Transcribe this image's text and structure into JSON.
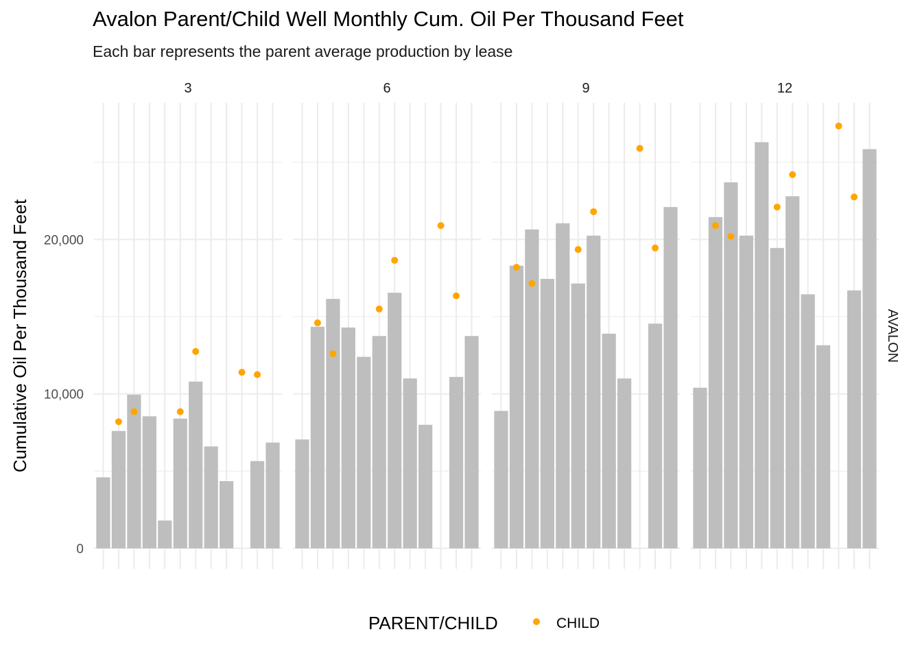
{
  "chart_data": {
    "type": "bar",
    "title": "Avalon Parent/Child Well Monthly Cum. Oil Per Thousand Feet",
    "subtitle": "Each bar represents the parent average production by lease",
    "ylabel": "Cumulative Oil Per Thousand Feet",
    "xlabel": "",
    "ylim": [
      0,
      28000
    ],
    "yticks": [
      0,
      10000,
      20000
    ],
    "ytick_labels": [
      "0",
      "10,000",
      "20,000"
    ],
    "grid": true,
    "row_strip": "AVALON",
    "legend": {
      "title": "PARENT/CHILD",
      "position": "bottom",
      "entries": [
        {
          "label": "CHILD",
          "color": "#FFA500"
        }
      ]
    },
    "colors": {
      "bar": "#BEBEBE",
      "point": "#FFA500",
      "grid": "#EBEBEB"
    },
    "num_leases": 12,
    "panels": [
      {
        "label": "3",
        "bars": [
          4600,
          7600,
          9950,
          8550,
          1800,
          8400,
          10800,
          6600,
          4350,
          null,
          5650,
          6850
        ],
        "points": [
          null,
          8200,
          8850,
          null,
          null,
          8850,
          12750,
          null,
          null,
          11400,
          11250,
          null
        ]
      },
      {
        "label": "6",
        "bars": [
          7050,
          14350,
          16150,
          14300,
          12400,
          13750,
          16550,
          11000,
          8000,
          null,
          11100,
          13750
        ],
        "points": [
          null,
          14600,
          12600,
          null,
          null,
          15500,
          18650,
          null,
          null,
          20900,
          16350,
          null
        ]
      },
      {
        "label": "9",
        "bars": [
          8900,
          18300,
          20650,
          17450,
          21050,
          17150,
          20250,
          13900,
          11000,
          null,
          14550,
          22100
        ],
        "points": [
          null,
          18200,
          17150,
          null,
          null,
          19350,
          21800,
          null,
          null,
          25900,
          19450,
          null
        ]
      },
      {
        "label": "12",
        "bars": [
          10400,
          21450,
          23700,
          20250,
          26300,
          19450,
          22800,
          16450,
          13150,
          null,
          16700,
          25850
        ],
        "points": [
          null,
          20900,
          20200,
          null,
          null,
          22100,
          24200,
          null,
          null,
          27350,
          22750,
          null
        ]
      }
    ]
  }
}
